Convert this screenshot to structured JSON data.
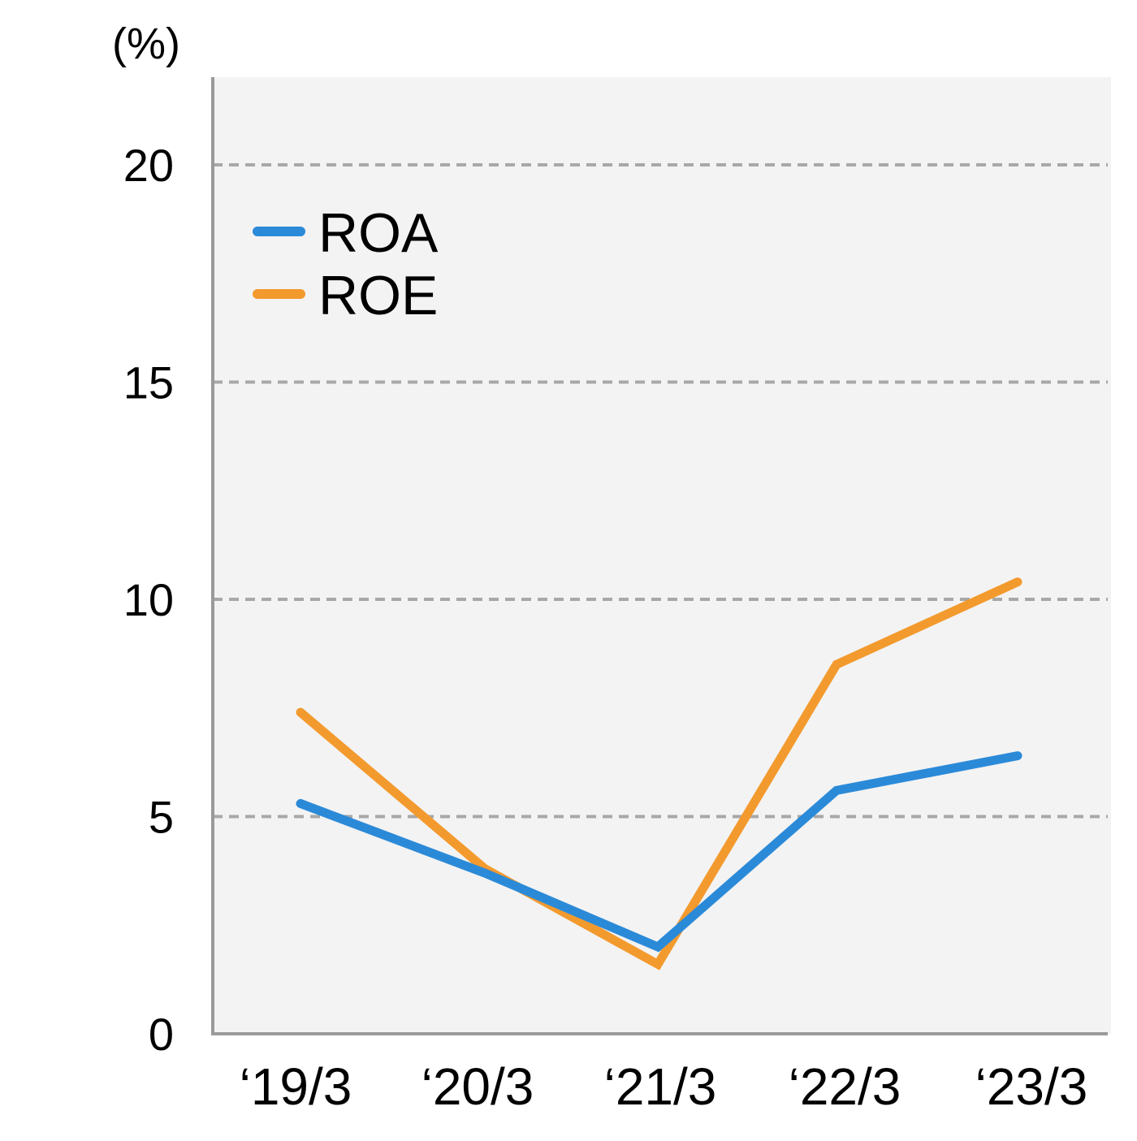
{
  "chart_data": {
    "type": "line",
    "unit_label": "(%)",
    "categories": [
      "‘19/3",
      "‘20/3",
      "‘21/3",
      "‘22/3",
      "‘23/3"
    ],
    "series": [
      {
        "name": "ROA",
        "color": "#2b8ad8",
        "values": [
          5.3,
          3.7,
          2.0,
          5.6,
          6.4
        ]
      },
      {
        "name": "ROE",
        "color": "#f39a2e",
        "values": [
          7.4,
          3.8,
          1.6,
          8.5,
          10.4
        ]
      }
    ],
    "ylim": [
      0,
      22
    ],
    "yticks": [
      "0",
      "5",
      "10",
      "15",
      "20"
    ],
    "grid": true,
    "legend": "top-left",
    "colors": {
      "plot_background": "#f3f3f3",
      "axis": "#9a9a9a",
      "grid": "#a8a8a8"
    }
  }
}
